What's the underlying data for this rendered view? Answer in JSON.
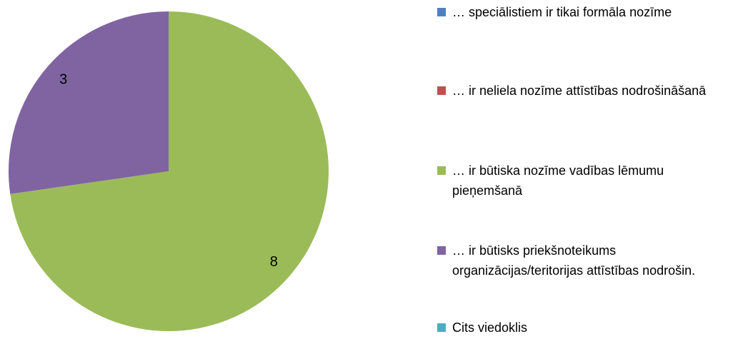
{
  "chart_data": {
    "type": "pie",
    "categories": [
      "… speciālistiem ir tikai formāla nozīme",
      "… ir neliela nozīme attīstības nodrošināšanā",
      "… ir būtiska nozīme vadības lēmumu pieņemšanā",
      "… ir būtisks priekšnoteikums organizācijas/teritorijas attīstības nodrošin.",
      "Cits viedoklis"
    ],
    "values": [
      0,
      0,
      8,
      3,
      0
    ],
    "colors": [
      "#4f81bd",
      "#c0504d",
      "#9bbb59",
      "#8064a2",
      "#4bacc6"
    ],
    "legend": "right"
  }
}
